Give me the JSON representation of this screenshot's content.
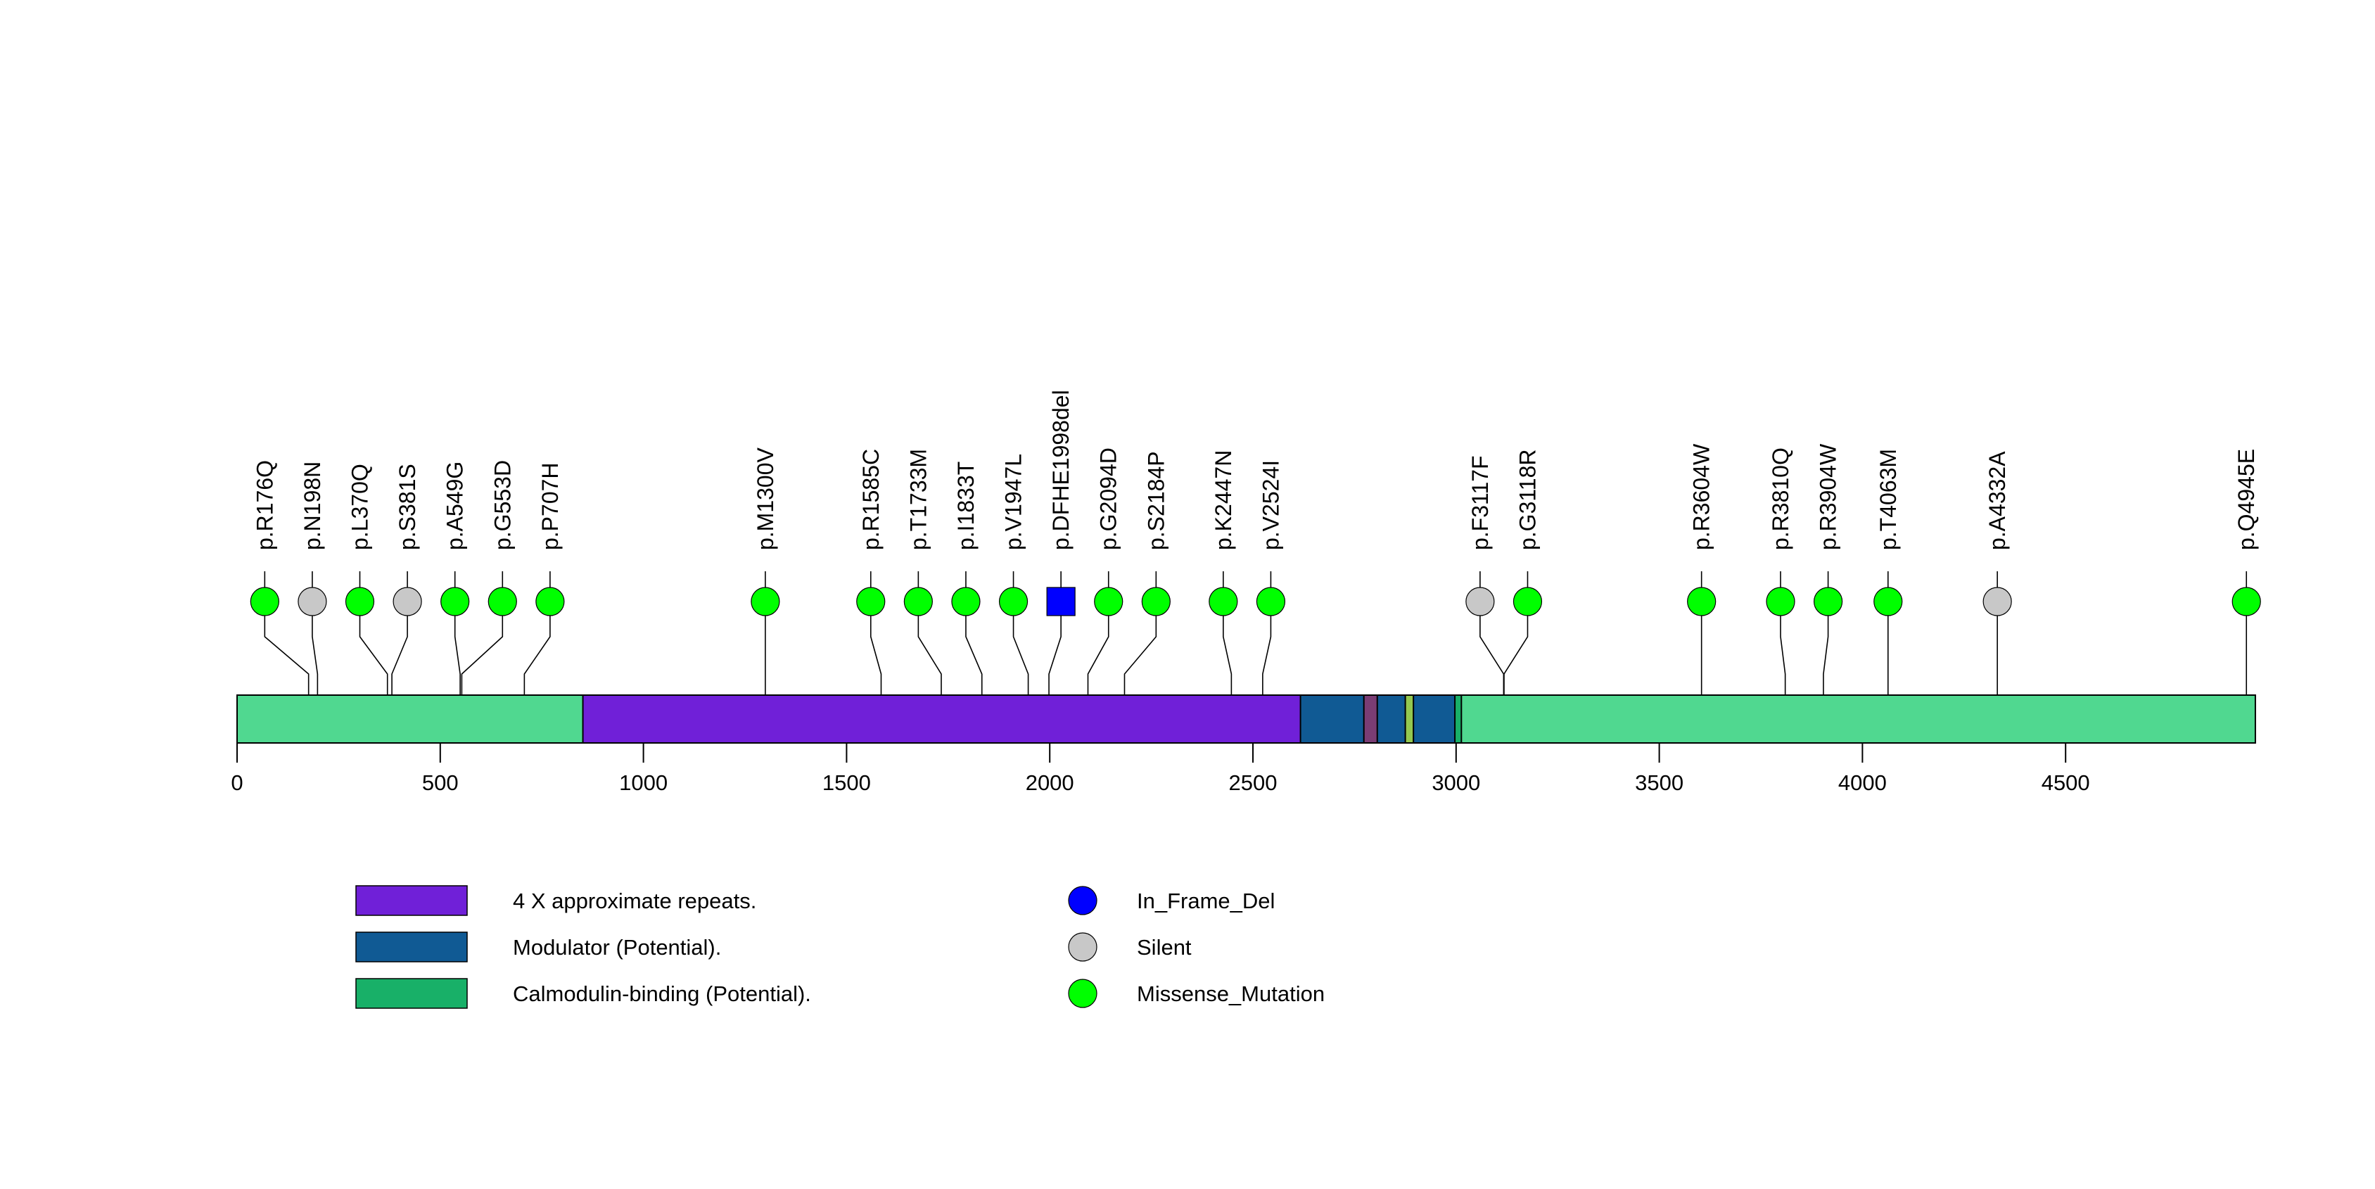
{
  "chart_data": {
    "type": "lollipop",
    "title": "",
    "protein_length": 4967,
    "x_axis": {
      "ticks": [
        0,
        500,
        1000,
        1500,
        2000,
        2500,
        3000,
        3500,
        4000,
        4500
      ],
      "tick_labels": [
        "0",
        "500",
        "1000",
        "1500",
        "2000",
        "2500",
        "3000",
        "3500",
        "4000",
        "4500"
      ],
      "range": [
        0,
        4967
      ]
    },
    "domains": [
      {
        "name": "Calmodulin-binding (Potential).",
        "start": 1,
        "end": 852,
        "color": "#50D890",
        "legend": false
      },
      {
        "name": "4 X approximate repeats.",
        "start": 852,
        "end": 2618,
        "color": "#7020D8"
      },
      {
        "name": "Modulator (Potential).",
        "start": 2618,
        "end": 2774,
        "color": "#105A94"
      },
      {
        "name": "overlap-region",
        "start": 2774,
        "end": 2807,
        "color": "#7A3D74",
        "legend": false
      },
      {
        "name": "Modulator (Potential).",
        "start": 2807,
        "end": 2876,
        "color": "#105A94"
      },
      {
        "name": "overlap-region-2",
        "start": 2876,
        "end": 2896,
        "color": "#94C850",
        "legend": false
      },
      {
        "name": "Modulator (Potential).",
        "start": 2896,
        "end": 2998,
        "color": "#105A94"
      },
      {
        "name": "Calmodulin-binding (Potential).",
        "start": 2998,
        "end": 3014,
        "color": "#18B068"
      },
      {
        "name": "Calmodulin-binding (Potential).",
        "start": 3014,
        "end": 4967,
        "color": "#50D890",
        "legend": false
      }
    ],
    "mutations": [
      {
        "label": "p.R176Q",
        "position": 176,
        "type": "Missense_Mutation"
      },
      {
        "label": "p.N198N",
        "position": 198,
        "type": "Silent"
      },
      {
        "label": "p.L370Q",
        "position": 370,
        "type": "Missense_Mutation"
      },
      {
        "label": "p.S381S",
        "position": 381,
        "type": "Silent"
      },
      {
        "label": "p.A549G",
        "position": 549,
        "type": "Missense_Mutation"
      },
      {
        "label": "p.G553D",
        "position": 553,
        "type": "Missense_Mutation"
      },
      {
        "label": "p.P707H",
        "position": 707,
        "type": "Missense_Mutation"
      },
      {
        "label": "p.M1300V",
        "position": 1300,
        "type": "Missense_Mutation"
      },
      {
        "label": "p.R1585C",
        "position": 1585,
        "type": "Missense_Mutation"
      },
      {
        "label": "p.T1733M",
        "position": 1733,
        "type": "Missense_Mutation"
      },
      {
        "label": "p.I1833T",
        "position": 1833,
        "type": "Missense_Mutation"
      },
      {
        "label": "p.V1947L",
        "position": 1947,
        "type": "Missense_Mutation"
      },
      {
        "label": "p.DFHE1998del",
        "position": 1998,
        "type": "In_Frame_Del"
      },
      {
        "label": "p.G2094D",
        "position": 2094,
        "type": "Missense_Mutation"
      },
      {
        "label": "p.S2184P",
        "position": 2184,
        "type": "Missense_Mutation"
      },
      {
        "label": "p.K2447N",
        "position": 2447,
        "type": "Missense_Mutation"
      },
      {
        "label": "p.V2524I",
        "position": 2524,
        "type": "Missense_Mutation"
      },
      {
        "label": "p.F3117F",
        "position": 3117,
        "type": "Silent"
      },
      {
        "label": "p.G3118R",
        "position": 3118,
        "type": "Missense_Mutation"
      },
      {
        "label": "p.R3604W",
        "position": 3604,
        "type": "Missense_Mutation"
      },
      {
        "label": "p.R3810Q",
        "position": 3810,
        "type": "Missense_Mutation"
      },
      {
        "label": "p.R3904W",
        "position": 3904,
        "type": "Missense_Mutation"
      },
      {
        "label": "p.T4063M",
        "position": 4063,
        "type": "Missense_Mutation"
      },
      {
        "label": "p.A4332A",
        "position": 4332,
        "type": "Silent"
      },
      {
        "label": "p.Q4945E",
        "position": 4945,
        "type": "Missense_Mutation"
      }
    ],
    "mutation_types": {
      "In_Frame_Del": {
        "color": "#0000FF",
        "shape": "square"
      },
      "Silent": {
        "color": "#C8C8C8",
        "shape": "circle"
      },
      "Missense_Mutation": {
        "color": "#00FF00",
        "shape": "circle"
      }
    },
    "legend": {
      "placement": "bottom",
      "domains": [
        {
          "label": "4 X approximate repeats.",
          "color": "#7020D8"
        },
        {
          "label": "Modulator (Potential).",
          "color": "#105A94"
        },
        {
          "label": "Calmodulin-binding (Potential).",
          "color": "#18B068"
        }
      ],
      "mutation_types": [
        {
          "label": "In_Frame_Del",
          "color": "#0000FF"
        },
        {
          "label": "Silent",
          "color": "#C8C8C8"
        },
        {
          "label": "Missense_Mutation",
          "color": "#00FF00"
        }
      ]
    }
  }
}
